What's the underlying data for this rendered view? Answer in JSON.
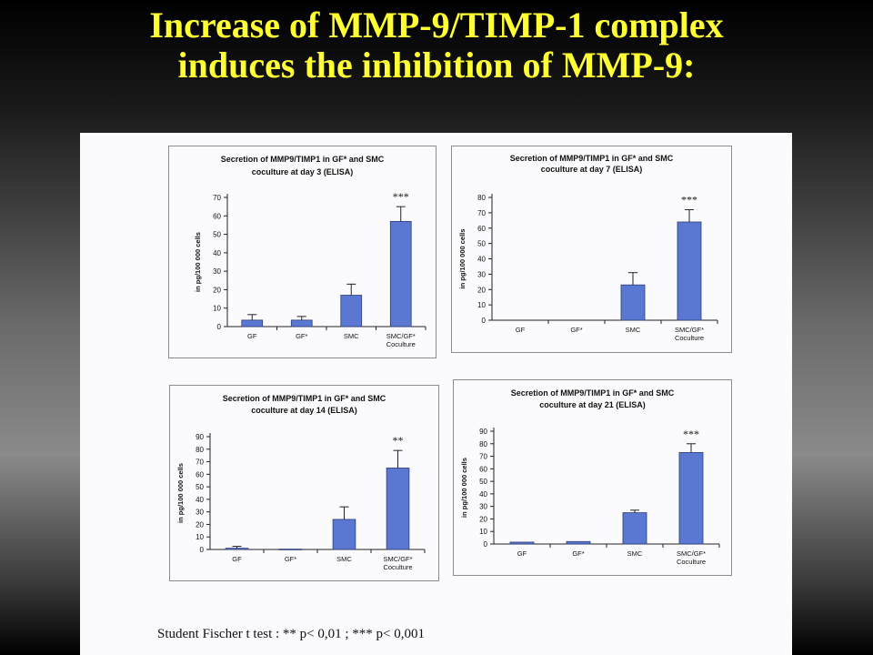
{
  "slide": {
    "title_line1": "Increase of MMP-9/TIMP-1 complex",
    "title_line2": "induces the inhibition of MMP-9:",
    "footnote": "Student Fischer t test : ** p< 0,01 ; *** p< 0,001"
  },
  "colors": {
    "title": "#ffff33",
    "bar": "#5a78d2",
    "bar_stroke": "#2c3e78"
  },
  "chart_data": [
    {
      "type": "bar",
      "title_lines": [
        "Secretion of MMP9/TIMP1  in GF* and SMC",
        "coculture at day 3 (ELISA)"
      ],
      "ylabel": "in pg/100 000 cells",
      "categories": [
        "GF",
        "GF*",
        "SMC",
        "SMC/GF*"
      ],
      "category_sublabel": "Coculture",
      "values": [
        3.5,
        3.5,
        17,
        57
      ],
      "errors": [
        3,
        2,
        6,
        8
      ],
      "ylim": [
        0,
        70
      ],
      "yticks": [
        0,
        10,
        20,
        30,
        40,
        50,
        60,
        70
      ],
      "significance": "***",
      "significance_index": 3
    },
    {
      "type": "bar",
      "title_lines": [
        "Secretion of MMP9/TIMP1  in GF* and SMC",
        "coculture at day 7 (ELISA)"
      ],
      "ylabel": "in pg/100 000 cells",
      "categories": [
        "GF",
        "GF*",
        "SMC",
        "SMC/GF*"
      ],
      "category_sublabel": "Coculture",
      "values": [
        0,
        0,
        23,
        64
      ],
      "errors": [
        0,
        0,
        8,
        8
      ],
      "ylim": [
        0,
        80
      ],
      "yticks": [
        0,
        10,
        20,
        30,
        40,
        50,
        60,
        70,
        80
      ],
      "significance": "***",
      "significance_index": 3
    },
    {
      "type": "bar",
      "title_lines": [
        "Secretion of MMP9/TIMP1  in GF* and SMC",
        "coculture at day 14 (ELISA)"
      ],
      "ylabel": "in pg/100 000 cells",
      "categories": [
        "GF",
        "GF*",
        "SMC",
        "SMC/GF*"
      ],
      "category_sublabel": "Coculture",
      "values": [
        1,
        0.3,
        24,
        65
      ],
      "errors": [
        1.5,
        0,
        10,
        14
      ],
      "ylim": [
        0,
        90
      ],
      "yticks": [
        0,
        10,
        20,
        30,
        40,
        50,
        60,
        70,
        80,
        90
      ],
      "significance": "**",
      "significance_index": 3
    },
    {
      "type": "bar",
      "title_lines": [
        "Secretion of MMP9/TIMP1  in GF* and SMC",
        "coculture at day 21 (ELISA)"
      ],
      "ylabel": "in pg/100 000 cells",
      "categories": [
        "GF",
        "GF*",
        "SMC",
        "SMC/GF*"
      ],
      "category_sublabel": "Coculture",
      "values": [
        1.5,
        2,
        25,
        73
      ],
      "errors": [
        0,
        0,
        2,
        7
      ],
      "ylim": [
        0,
        90
      ],
      "yticks": [
        0,
        10,
        20,
        30,
        40,
        50,
        60,
        70,
        80,
        90
      ],
      "significance": "***",
      "significance_index": 3
    }
  ]
}
